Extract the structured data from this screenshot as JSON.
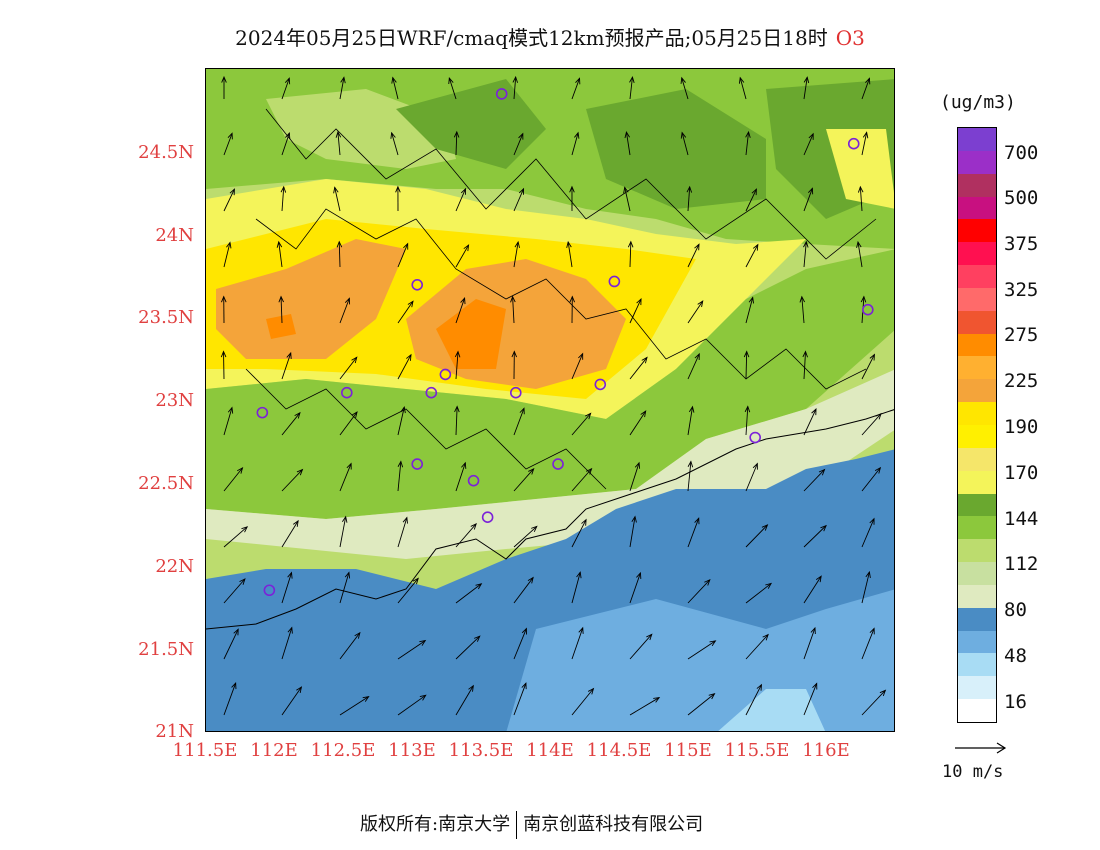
{
  "title": "2024年05月25日WRF/cmaq模式12km预报产品;05月25日18时",
  "species": "O3",
  "unit": "(ug/m3)",
  "lat_labels": [
    "24.5N",
    "24N",
    "23.5N",
    "23N",
    "22.5N",
    "22N",
    "21.5N",
    "21N"
  ],
  "lon_labels": [
    "111.5E",
    "112E",
    "112.5E",
    "113E",
    "113.5E",
    "114E",
    "114.5E",
    "115E",
    "115.5E",
    "116E"
  ],
  "colorbar": {
    "labels": [
      "700",
      "500",
      "375",
      "325",
      "275",
      "225",
      "190",
      "170",
      "144",
      "112",
      "80",
      "48",
      "16"
    ],
    "colors": [
      "#7c3fd0",
      "#9b2fc8",
      "#b03060",
      "#c81080",
      "#ff0000",
      "#ff1050",
      "#ff4060",
      "#ff6a6a",
      "#f05530",
      "#ff8c00",
      "#ffb030",
      "#f4a43a",
      "#ffe600",
      "#fff000",
      "#f5e66a",
      "#f4f45a",
      "#6aa82f",
      "#8cc83c",
      "#bcdc6e",
      "#c8e0a0",
      "#dfeac0",
      "#4a8cc4",
      "#6eaee0",
      "#a8dcf4",
      "#d8f0fa",
      "#ffffff"
    ]
  },
  "wind_reference": {
    "label": "10 m/s"
  },
  "footer": {
    "copyright": "版权所有:南京大学",
    "company": "南京创蓝科技有限公司"
  },
  "map_data": {
    "lon_range": [
      111.5,
      116.4
    ],
    "lat_range": [
      21.0,
      25.0
    ],
    "stations": [
      [
        113.6,
        24.85
      ],
      [
        116.1,
        24.55
      ],
      [
        113.0,
        23.7
      ],
      [
        114.4,
        23.72
      ],
      [
        116.2,
        23.55
      ],
      [
        113.2,
        23.16
      ],
      [
        113.1,
        23.05
      ],
      [
        112.5,
        23.05
      ],
      [
        113.7,
        23.05
      ],
      [
        114.3,
        23.1
      ],
      [
        111.9,
        22.93
      ],
      [
        115.4,
        22.78
      ],
      [
        113.0,
        22.62
      ],
      [
        113.4,
        22.52
      ],
      [
        114.0,
        22.62
      ],
      [
        113.5,
        22.3
      ],
      [
        111.95,
        21.86
      ]
    ]
  }
}
